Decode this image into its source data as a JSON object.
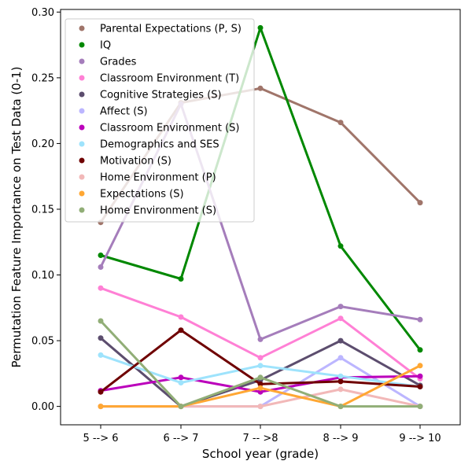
{
  "chart_data": {
    "type": "line",
    "categories": [
      "5 --> 6",
      "6 --> 7",
      "7 -- >8",
      "8 --> 9",
      "9 --> 10"
    ],
    "xlabel": "School year (grade)",
    "ylabel": "Permutation Feature Importance on Test Data (0-1)",
    "ylim": [
      -0.014,
      0.302
    ],
    "yticks": [
      "0.00",
      "0.05",
      "0.10",
      "0.15",
      "0.20",
      "0.25",
      "0.30"
    ],
    "legend_position": "upper-left",
    "grid": false,
    "series": [
      {
        "name": "Parental Expectations (P, S)",
        "color": "#a0756a",
        "values": [
          0.14,
          0.231,
          0.242,
          0.216,
          0.155
        ]
      },
      {
        "name": "IQ",
        "color": "#008800",
        "values": [
          0.115,
          0.097,
          0.288,
          0.122,
          0.043
        ]
      },
      {
        "name": "Grades",
        "color": "#a57dbb",
        "values": [
          0.106,
          0.23,
          0.051,
          0.076,
          0.066
        ]
      },
      {
        "name": "Classroom Environment (T)",
        "color": "#ff80d5",
        "values": [
          0.09,
          0.068,
          0.037,
          0.067,
          0.021
        ]
      },
      {
        "name": "Cognitive Strategies (S)",
        "color": "#5c4d6e",
        "values": [
          0.052,
          0.0,
          0.02,
          0.05,
          0.016
        ]
      },
      {
        "name": "Affect (S)",
        "color": "#bcb6ff",
        "values": [
          0.0,
          0.0,
          0.0,
          0.037,
          0.0
        ]
      },
      {
        "name": "Classroom Environment (S)",
        "color": "#bb00bb",
        "values": [
          0.012,
          0.022,
          0.011,
          0.022,
          0.023
        ]
      },
      {
        "name": "Demographics and SES",
        "color": "#9ee3fc",
        "values": [
          0.039,
          0.018,
          0.031,
          0.023,
          0.015
        ]
      },
      {
        "name": "Motivation (S)",
        "color": "#6f0000",
        "values": [
          0.011,
          0.058,
          0.017,
          0.019,
          0.015
        ]
      },
      {
        "name": "Home Environment (P)",
        "color": "#f2b8b8",
        "values": [
          0.0,
          0.0,
          0.0,
          0.013,
          0.0
        ]
      },
      {
        "name": "Expectations (S)",
        "color": "#ffa733",
        "values": [
          0.0,
          0.0,
          0.014,
          0.0,
          0.031
        ]
      },
      {
        "name": "Home Environment (S)",
        "color": "#91ae77",
        "values": [
          0.065,
          0.0,
          0.022,
          0.0,
          0.0
        ]
      }
    ]
  }
}
